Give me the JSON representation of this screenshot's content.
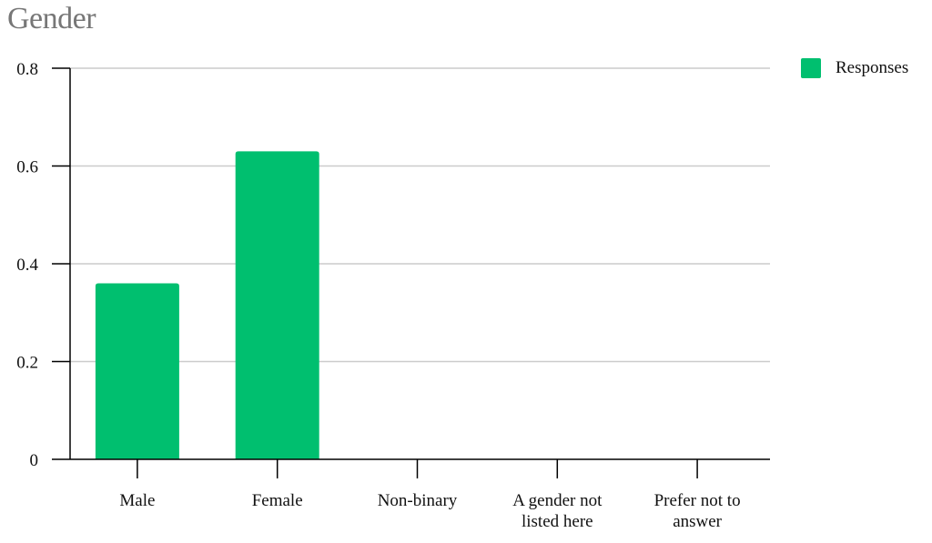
{
  "chart_data": {
    "type": "bar",
    "title": "Gender",
    "categories": [
      [
        "Male"
      ],
      [
        "Female"
      ],
      [
        "Non-binary"
      ],
      [
        "A gender not",
        "listed here"
      ],
      [
        "Prefer not to",
        "answer"
      ]
    ],
    "series": [
      {
        "name": "Responses",
        "values": [
          0.36,
          0.63,
          0,
          0,
          0
        ]
      }
    ],
    "yticks": [
      "0",
      "0.2",
      "0.4",
      "0.6",
      "0.8"
    ],
    "ylim": [
      0,
      0.8
    ],
    "grid": true,
    "legend_position": "top-right",
    "colors": {
      "bar": "#00bf6f",
      "grid": "#cccccc",
      "axis": "#000000"
    }
  }
}
